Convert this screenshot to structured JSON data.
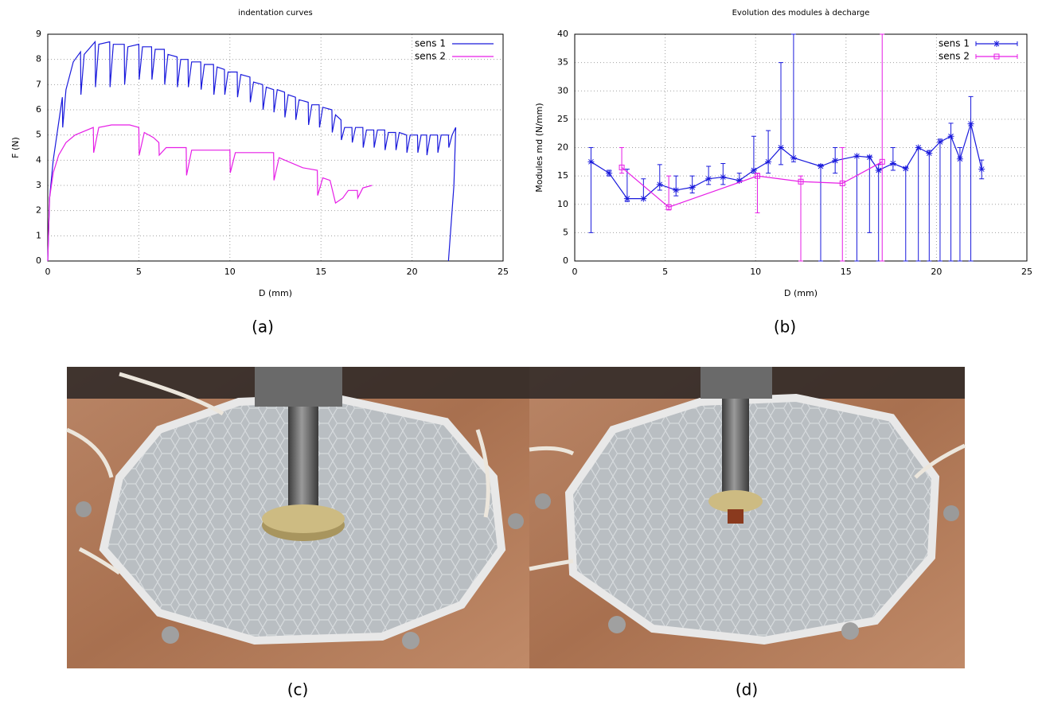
{
  "chart_data": [
    {
      "type": "line",
      "title": "indentation curves",
      "xlabel": "D (mm)",
      "ylabel": "F (N)",
      "xlim": [
        0,
        25
      ],
      "ylim": [
        0,
        9
      ],
      "xticks": [
        0,
        5,
        10,
        15,
        20,
        25
      ],
      "yticks": [
        0,
        1,
        2,
        3,
        4,
        5,
        6,
        7,
        8,
        9
      ],
      "grid": true,
      "legend": "top-right",
      "series": [
        {
          "name": "sens 1",
          "color": "#1a1adc",
          "x": [
            0,
            0.1,
            0.3,
            0.5,
            0.8,
            0.82,
            1.0,
            1.4,
            1.8,
            1.82,
            2.0,
            2.6,
            2.62,
            2.8,
            3.4,
            3.42,
            3.6,
            4.2,
            4.22,
            4.4,
            5.0,
            5.02,
            5.2,
            5.7,
            5.72,
            5.9,
            6.4,
            6.42,
            6.6,
            7.1,
            7.12,
            7.3,
            7.7,
            7.72,
            7.9,
            8.4,
            8.42,
            8.6,
            9.1,
            9.12,
            9.3,
            9.7,
            9.72,
            9.9,
            10.4,
            10.42,
            10.6,
            11.1,
            11.12,
            11.3,
            11.8,
            11.82,
            12.0,
            12.4,
            12.42,
            12.6,
            13.0,
            13.02,
            13.2,
            13.6,
            13.62,
            13.8,
            14.3,
            14.32,
            14.5,
            14.9,
            14.92,
            15.1,
            15.6,
            15.62,
            15.8,
            16.1,
            16.12,
            16.3,
            16.7,
            16.72,
            16.9,
            17.3,
            17.32,
            17.5,
            17.9,
            17.92,
            18.1,
            18.5,
            18.52,
            18.7,
            19.1,
            19.12,
            19.3,
            19.7,
            19.72,
            19.9,
            20.3,
            20.32,
            20.5,
            20.8,
            20.82,
            21.0,
            21.4,
            21.42,
            21.6,
            22.0,
            22.02,
            22.2,
            22.4,
            22.3,
            22.0
          ],
          "values": [
            0,
            2.5,
            4.0,
            5.0,
            6.5,
            5.3,
            6.8,
            7.9,
            8.3,
            6.6,
            8.2,
            8.7,
            6.9,
            8.6,
            8.7,
            6.9,
            8.6,
            8.6,
            7.0,
            8.5,
            8.6,
            7.2,
            8.5,
            8.5,
            7.2,
            8.4,
            8.4,
            7.0,
            8.2,
            8.1,
            6.9,
            8.0,
            8.0,
            6.9,
            7.9,
            7.9,
            6.8,
            7.8,
            7.8,
            6.6,
            7.7,
            7.6,
            6.6,
            7.5,
            7.5,
            6.5,
            7.4,
            7.3,
            6.3,
            7.1,
            7.0,
            6.0,
            6.9,
            6.8,
            5.9,
            6.8,
            6.7,
            5.7,
            6.6,
            6.5,
            5.6,
            6.4,
            6.3,
            5.4,
            6.2,
            6.2,
            5.3,
            6.1,
            6.0,
            5.1,
            5.8,
            5.6,
            4.8,
            5.3,
            5.3,
            4.7,
            5.3,
            5.3,
            4.5,
            5.2,
            5.2,
            4.5,
            5.2,
            5.2,
            4.4,
            5.1,
            5.1,
            4.4,
            5.1,
            5.0,
            4.3,
            5.0,
            5.0,
            4.3,
            5.0,
            5.0,
            4.2,
            5.0,
            5.0,
            4.3,
            5.0,
            5.0,
            4.5,
            5.0,
            5.3,
            3.0,
            0
          ]
        },
        {
          "name": "sens 2",
          "color": "#e61ee6",
          "x": [
            0,
            0.1,
            0.3,
            0.6,
            1.0,
            1.5,
            2.5,
            2.52,
            2.8,
            3.5,
            4.5,
            5.0,
            5.02,
            5.3,
            5.8,
            6.1,
            6.12,
            6.5,
            7.6,
            7.62,
            7.9,
            10.0,
            10.02,
            10.3,
            12.4,
            12.42,
            12.7,
            14.0,
            14.8,
            14.82,
            15.1,
            15.5,
            15.8,
            16.2,
            16.5,
            17.0,
            17.02,
            17.3,
            17.8
          ],
          "values": [
            0,
            2.5,
            3.5,
            4.2,
            4.7,
            5.0,
            5.3,
            4.3,
            5.3,
            5.4,
            5.4,
            5.3,
            4.2,
            5.1,
            4.9,
            4.7,
            4.2,
            4.5,
            4.5,
            3.4,
            4.4,
            4.4,
            3.5,
            4.3,
            4.3,
            3.2,
            4.1,
            3.7,
            3.6,
            2.6,
            3.3,
            3.2,
            2.3,
            2.5,
            2.8,
            2.8,
            2.5,
            2.9,
            3.0
          ]
        }
      ]
    },
    {
      "type": "errorbar",
      "title": "Evolution des modules à decharge",
      "xlabel": "D (mm)",
      "ylabel": "Modules md (N/mm)",
      "xlim": [
        0,
        25
      ],
      "ylim": [
        0,
        40
      ],
      "xticks": [
        0,
        5,
        10,
        15,
        20,
        25
      ],
      "yticks": [
        0,
        5,
        10,
        15,
        20,
        25,
        30,
        35,
        40
      ],
      "grid": true,
      "legend": "top-right",
      "series": [
        {
          "name": "sens 1",
          "color": "#1a1adc",
          "marker": "star",
          "x": [
            0.9,
            1.9,
            2.9,
            3.8,
            4.7,
            5.6,
            6.5,
            7.4,
            8.2,
            9.1,
            9.9,
            10.7,
            11.4,
            12.1,
            13.6,
            14.4,
            15.6,
            16.3,
            16.8,
            17.6,
            18.3,
            19.0,
            19.6,
            20.2,
            20.8,
            21.3,
            21.9,
            22.5
          ],
          "values": [
            17.5,
            15.5,
            11,
            11,
            13.5,
            12.5,
            13,
            14.5,
            14.8,
            14.2,
            16,
            17.5,
            20,
            18.2,
            16.7,
            17.7,
            18.5,
            18.3,
            16,
            17.2,
            16.3,
            20,
            19,
            21,
            22,
            18,
            24.2,
            16.2
          ],
          "lower": [
            5,
            15,
            10.5,
            11,
            12.5,
            11.5,
            12,
            13.5,
            13.5,
            14,
            15.5,
            15.5,
            17,
            17.5,
            0,
            15.5,
            0,
            5,
            0,
            16,
            0,
            0,
            0,
            0,
            0,
            0,
            0,
            14.5
          ],
          "upper": [
            20,
            16,
            16.2,
            14.5,
            17,
            15,
            15,
            16.7,
            17.2,
            15.5,
            22,
            23,
            35,
            40,
            17,
            20,
            18.5,
            18.5,
            17,
            20,
            16.5,
            20,
            19.5,
            21.5,
            24.3,
            20,
            29,
            17.8
          ]
        },
        {
          "name": "sens 2",
          "color": "#e61ee6",
          "marker": "square",
          "x": [
            2.6,
            5.2,
            10.1,
            12.5,
            14.8,
            17.0
          ],
          "values": [
            16.5,
            9.5,
            15,
            14,
            13.7,
            17.5
          ],
          "lower": [
            15.5,
            9,
            8.5,
            0,
            0,
            0
          ],
          "upper": [
            20,
            15,
            15.5,
            15,
            20,
            40
          ]
        }
      ]
    }
  ],
  "captions": [
    "(a)",
    "(b)",
    "(c)",
    "(d)"
  ]
}
